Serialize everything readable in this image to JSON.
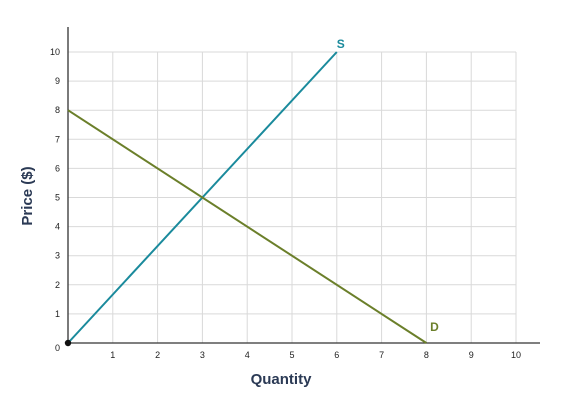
{
  "chart_data": {
    "type": "line",
    "title": "",
    "xlabel": "Quantity",
    "ylabel": "Price ($)",
    "xlim": [
      0,
      10
    ],
    "ylim": [
      0,
      10
    ],
    "origin_label": "0",
    "x_ticks": [
      "1",
      "2",
      "3",
      "4",
      "5",
      "6",
      "7",
      "8",
      "9",
      "10"
    ],
    "y_ticks": [
      "1",
      "2",
      "3",
      "4",
      "5",
      "6",
      "7",
      "8",
      "9",
      "10"
    ],
    "grid": true,
    "series": [
      {
        "name": "S",
        "color": "#1a8a9c",
        "points": [
          {
            "x": 0,
            "y": 0
          },
          {
            "x": 6,
            "y": 10
          }
        ]
      },
      {
        "name": "D",
        "color": "#6b7f2a",
        "points": [
          {
            "x": 0,
            "y": 8
          },
          {
            "x": 8,
            "y": 0
          }
        ]
      }
    ],
    "origin_point": {
      "x": 0,
      "y": 0
    }
  }
}
